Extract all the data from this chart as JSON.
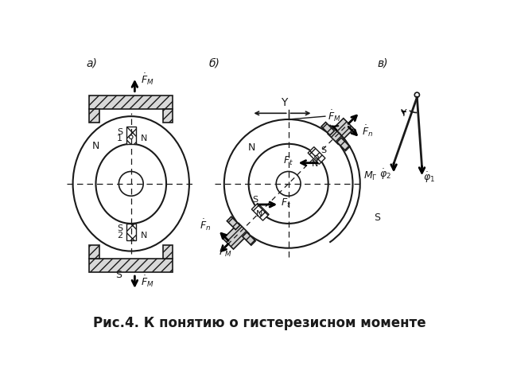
{
  "title": "Рис.4. К понятию о гистерезисном моменте",
  "title_fontsize": 12,
  "bg_color": "#ffffff",
  "fg_color": "#1a1a1a",
  "panel_a_label": "а)",
  "panel_b_label": "б)",
  "panel_v_label": "в)"
}
